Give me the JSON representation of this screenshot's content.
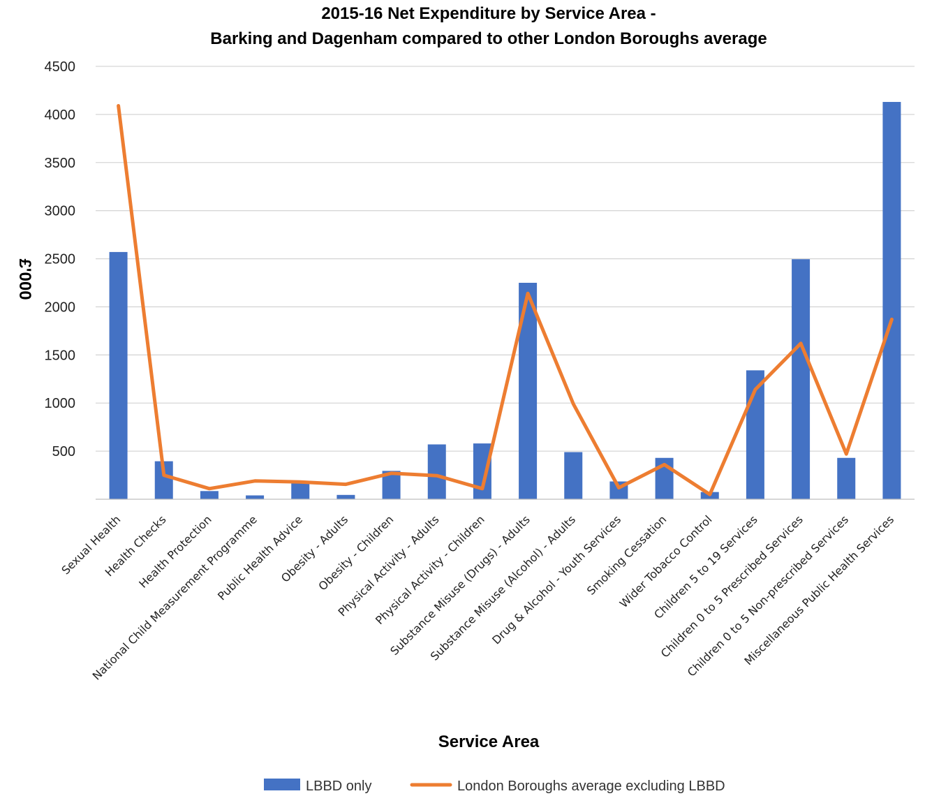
{
  "chart_data": {
    "type": "bar",
    "title": [
      "2015-16 Net Expenditure by Service Area -",
      "Barking and Dagenham compared to other London Boroughs average"
    ],
    "xlabel": "Service Area",
    "ylabel": "£'000",
    "ylim": [
      0,
      4500
    ],
    "yticks": [
      500,
      1000,
      1500,
      2000,
      2500,
      3000,
      3500,
      4000,
      4500
    ],
    "grid": true,
    "legend_position": "bottom",
    "categories": [
      "Sexual Health",
      "Health Checks",
      "Health Protection",
      "National Child Measurement Programme",
      "Public Health Advice",
      "Obesity - Adults",
      "Obesity - Children",
      "Physical Activity - Adults",
      "Physical Activity - Children",
      "Substance Misuse (Drugs) - Adults",
      "Substance Misuse (Alcohol) - Adults",
      "Drug & Alcohol - Youth Services",
      "Smoking Cessation",
      "Wider Tobacco Control",
      "Children 5 to 19 Services",
      "Children 0 to 5 Prescribed Services",
      "Children 0 to 5 Non-prescribed Services",
      "Miscellaneous Public Health Services"
    ],
    "series": [
      {
        "name": "LBBD only",
        "type": "bar",
        "color": "#4472c4",
        "values": [
          2570,
          395,
          85,
          40,
          170,
          45,
          295,
          570,
          580,
          2250,
          490,
          185,
          430,
          75,
          1340,
          2495,
          430,
          4130
        ]
      },
      {
        "name": "London Boroughs average excluding LBBD",
        "type": "line",
        "color": "#ed7d31",
        "values": [
          4090,
          250,
          110,
          190,
          180,
          155,
          270,
          245,
          110,
          2140,
          990,
          120,
          360,
          50,
          1140,
          1620,
          470,
          1870
        ]
      }
    ]
  }
}
